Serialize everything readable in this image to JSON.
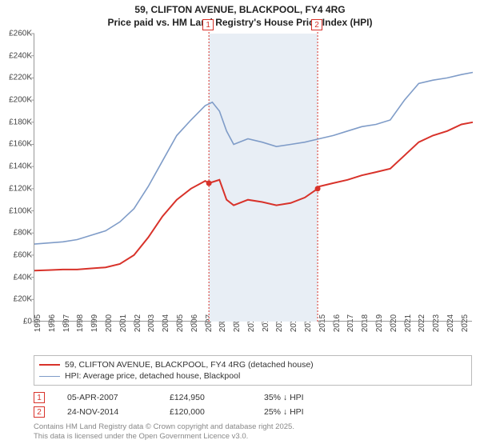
{
  "title_line1": "59, CLIFTON AVENUE, BLACKPOOL, FY4 4RG",
  "title_line2": "Price paid vs. HM Land Registry's House Price Index (HPI)",
  "chart": {
    "type": "line",
    "background_color": "#ffffff",
    "grid_color": "#e6e6e6",
    "x_axis": {
      "min": 1995,
      "max": 2025.8,
      "ticks": [
        1995,
        1996,
        1997,
        1998,
        1999,
        2000,
        2001,
        2002,
        2003,
        2004,
        2005,
        2006,
        2007,
        2008,
        2009,
        2010,
        2011,
        2012,
        2013,
        2014,
        2015,
        2016,
        2017,
        2018,
        2019,
        2020,
        2021,
        2022,
        2023,
        2024,
        2025
      ],
      "label_fontsize": 10
    },
    "y_axis": {
      "min": 0,
      "max": 260000,
      "ticks": [
        0,
        20000,
        40000,
        60000,
        80000,
        100000,
        120000,
        140000,
        160000,
        180000,
        200000,
        220000,
        240000,
        260000
      ],
      "tick_labels": [
        "£0",
        "£20K",
        "£40K",
        "£60K",
        "£80K",
        "£100K",
        "£120K",
        "£140K",
        "£160K",
        "£180K",
        "£200K",
        "£220K",
        "£240K",
        "£260K"
      ],
      "label_fontsize": 10
    },
    "shaded_band": {
      "from": 2007.26,
      "to": 2014.9,
      "color": "#e8eef5"
    },
    "markers": [
      {
        "n": "1",
        "x": 2007.26,
        "date": "05-APR-2007",
        "price": "£124,950",
        "diff": "35% ↓ HPI"
      },
      {
        "n": "2",
        "x": 2014.9,
        "date": "24-NOV-2014",
        "price": "£120,000",
        "diff": "25% ↓ HPI"
      }
    ],
    "series": [
      {
        "name": "59, CLIFTON AVENUE, BLACKPOOL, FY4 4RG (detached house)",
        "color": "#d8322a",
        "line_width": 2,
        "points": [
          [
            1995,
            46000
          ],
          [
            1996,
            46500
          ],
          [
            1997,
            47000
          ],
          [
            1998,
            47000
          ],
          [
            1999,
            48000
          ],
          [
            2000,
            49000
          ],
          [
            2001,
            52000
          ],
          [
            2002,
            60000
          ],
          [
            2003,
            76000
          ],
          [
            2004,
            95000
          ],
          [
            2005,
            110000
          ],
          [
            2006,
            120000
          ],
          [
            2007,
            127000
          ],
          [
            2007.26,
            124950
          ],
          [
            2008,
            128000
          ],
          [
            2008.5,
            110000
          ],
          [
            2009,
            105000
          ],
          [
            2010,
            110000
          ],
          [
            2011,
            108000
          ],
          [
            2012,
            105000
          ],
          [
            2013,
            107000
          ],
          [
            2014,
            112000
          ],
          [
            2014.9,
            120000
          ],
          [
            2015,
            122000
          ],
          [
            2016,
            125000
          ],
          [
            2017,
            128000
          ],
          [
            2018,
            132000
          ],
          [
            2019,
            135000
          ],
          [
            2020,
            138000
          ],
          [
            2021,
            150000
          ],
          [
            2022,
            162000
          ],
          [
            2023,
            168000
          ],
          [
            2024,
            172000
          ],
          [
            2025,
            178000
          ],
          [
            2025.8,
            180000
          ]
        ],
        "sale_points": [
          [
            2007.26,
            124950
          ],
          [
            2014.9,
            120000
          ]
        ]
      },
      {
        "name": "HPI: Average price, detached house, Blackpool",
        "color": "#7f9cc8",
        "line_width": 1.6,
        "points": [
          [
            1995,
            70000
          ],
          [
            1996,
            71000
          ],
          [
            1997,
            72000
          ],
          [
            1998,
            74000
          ],
          [
            1999,
            78000
          ],
          [
            2000,
            82000
          ],
          [
            2001,
            90000
          ],
          [
            2002,
            102000
          ],
          [
            2003,
            122000
          ],
          [
            2004,
            145000
          ],
          [
            2005,
            168000
          ],
          [
            2006,
            182000
          ],
          [
            2007,
            195000
          ],
          [
            2007.5,
            198000
          ],
          [
            2008,
            190000
          ],
          [
            2008.5,
            172000
          ],
          [
            2009,
            160000
          ],
          [
            2010,
            165000
          ],
          [
            2011,
            162000
          ],
          [
            2012,
            158000
          ],
          [
            2013,
            160000
          ],
          [
            2014,
            162000
          ],
          [
            2015,
            165000
          ],
          [
            2016,
            168000
          ],
          [
            2017,
            172000
          ],
          [
            2018,
            176000
          ],
          [
            2019,
            178000
          ],
          [
            2020,
            182000
          ],
          [
            2021,
            200000
          ],
          [
            2022,
            215000
          ],
          [
            2023,
            218000
          ],
          [
            2024,
            220000
          ],
          [
            2025,
            223000
          ],
          [
            2025.8,
            225000
          ]
        ]
      }
    ]
  },
  "legend": {
    "items": [
      {
        "color": "#d8322a",
        "width": 2,
        "label": "59, CLIFTON AVENUE, BLACKPOOL, FY4 4RG (detached house)"
      },
      {
        "color": "#7f9cc8",
        "width": 1.6,
        "label": "HPI: Average price, detached house, Blackpool"
      }
    ]
  },
  "footer_line1": "Contains HM Land Registry data © Crown copyright and database right 2025.",
  "footer_line2": "This data is licensed under the Open Government Licence v3.0."
}
